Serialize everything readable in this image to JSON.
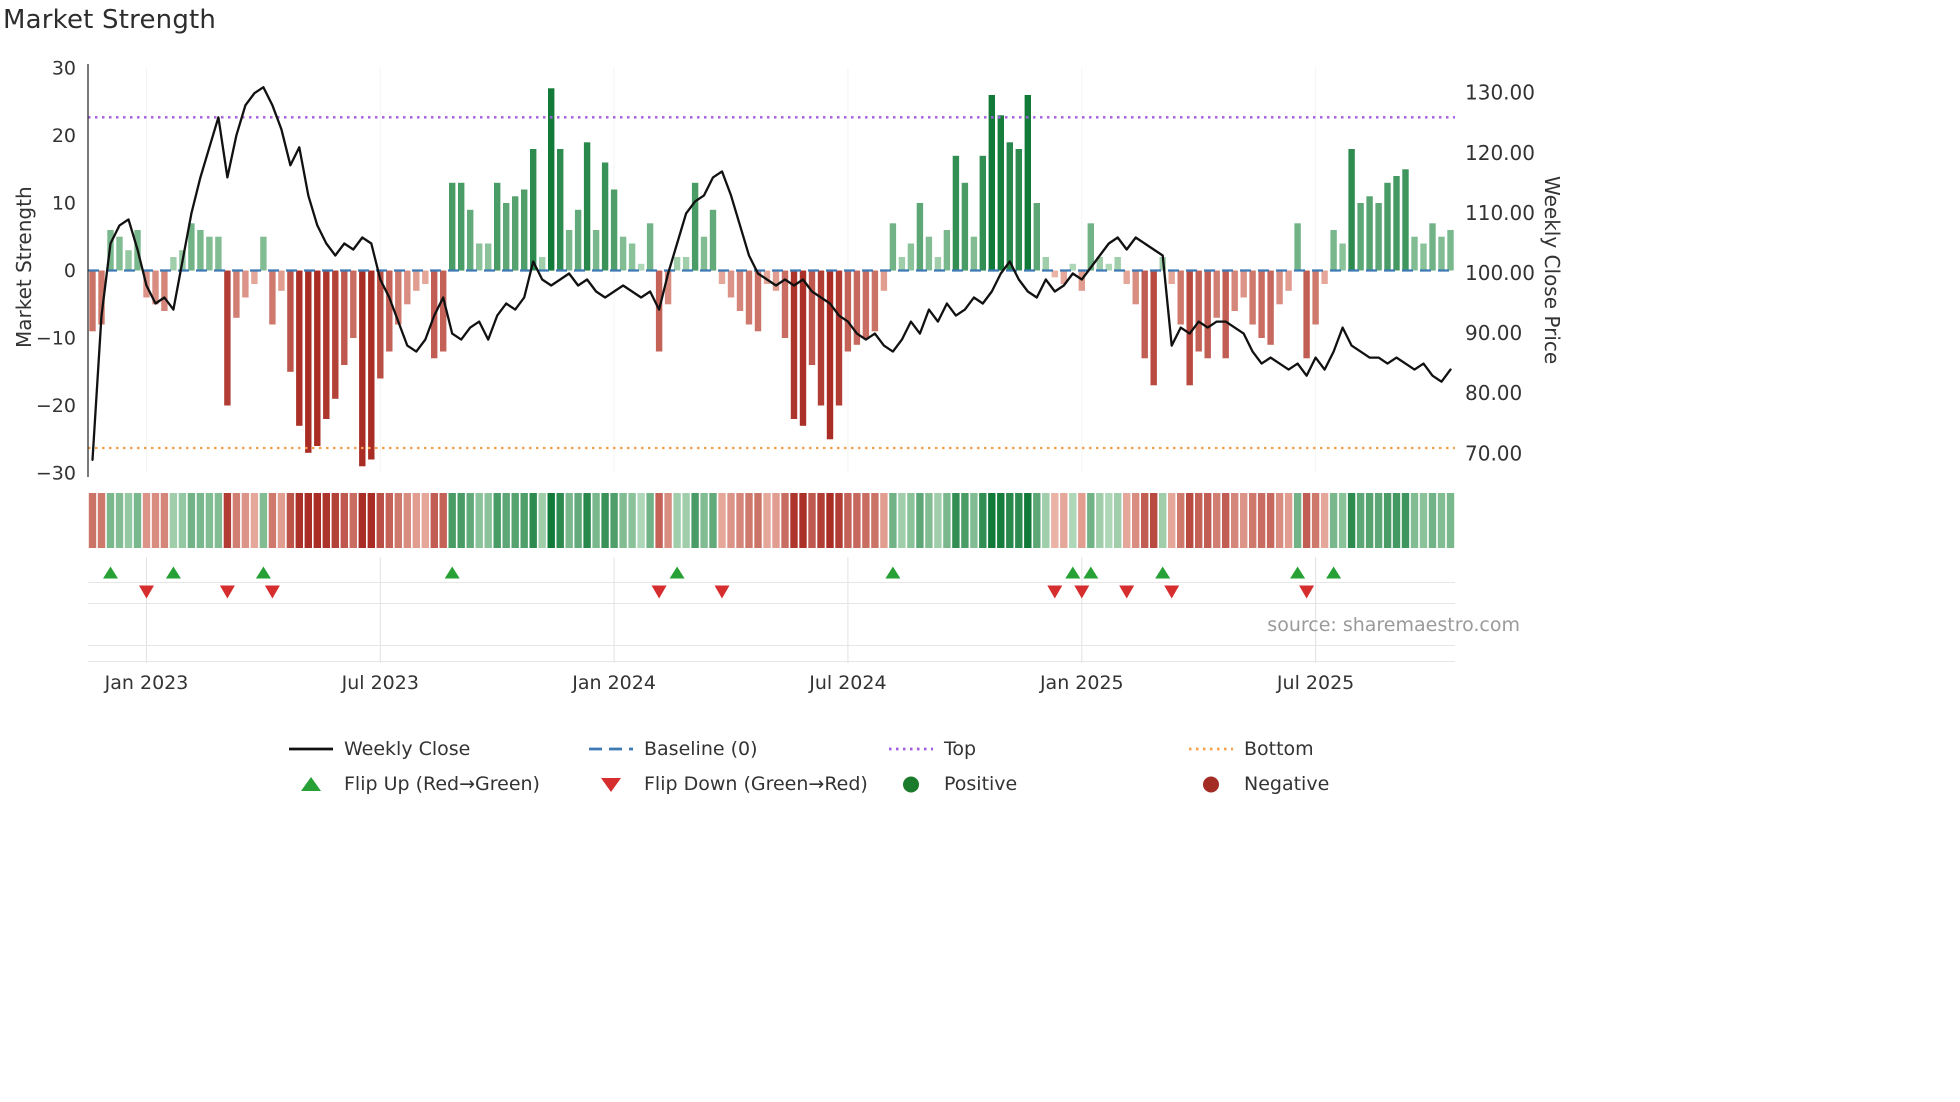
{
  "header": {
    "title": "Market Strength"
  },
  "source_text": "source: sharemaestro.com",
  "colors": {
    "weekly_close": "#111111",
    "baseline": "#3d7ab5",
    "top": "#a45de0",
    "bottom": "#f5a14d",
    "flip_up": "#27a035",
    "flip_down": "#d62e2e",
    "positive": "#1b7b2c",
    "negative": "#a32c25",
    "bar_green_dark": "#117a38",
    "bar_green_light": "#c9e7cd",
    "bar_red_dark": "#a92d24",
    "bar_red_light": "#f7cabc"
  },
  "legend": {
    "items": [
      {
        "label": "Weekly Close",
        "swatch": "line",
        "color_key": "weekly_close"
      },
      {
        "label": "Baseline (0)",
        "swatch": "dash",
        "color_key": "baseline"
      },
      {
        "label": "Top",
        "swatch": "dot",
        "color_key": "top"
      },
      {
        "label": "Bottom",
        "swatch": "dot",
        "color_key": "bottom"
      },
      {
        "label": "Flip Up (Red→Green)",
        "swatch": "tri_up",
        "color_key": "flip_up"
      },
      {
        "label": "Flip Down (Green→Red)",
        "swatch": "tri_down",
        "color_key": "flip_down"
      },
      {
        "label": "Positive",
        "swatch": "circle",
        "color_key": "positive"
      },
      {
        "label": "Negative",
        "swatch": "circle",
        "color_key": "negative"
      }
    ]
  },
  "chart_data": {
    "type": "bar+line",
    "title": "Market Strength",
    "ylabel_left": "Market Strength",
    "ylabel_right": "Weekly Close Price",
    "ylim_left": [
      -30,
      30
    ],
    "ylim_right": [
      66.8,
      134.2
    ],
    "grid": "light vertical gridlines at x ticks",
    "legend_position": "bottom",
    "yticks_left": [
      {
        "value": 30,
        "label": "30"
      },
      {
        "value": 20,
        "label": "20"
      },
      {
        "value": 10,
        "label": "10"
      },
      {
        "value": 0,
        "label": "0"
      },
      {
        "value": -10,
        "label": "−10"
      },
      {
        "value": -20,
        "label": "−20"
      },
      {
        "value": -30,
        "label": "−30"
      }
    ],
    "yticks_right": [
      {
        "value": 130,
        "label": "130.00"
      },
      {
        "value": 120,
        "label": "120.00"
      },
      {
        "value": 110,
        "label": "110.00"
      },
      {
        "value": 100,
        "label": "100.00"
      },
      {
        "value": 90,
        "label": "90.00"
      },
      {
        "value": 80,
        "label": "80.00"
      },
      {
        "value": 70,
        "label": "70.00"
      }
    ],
    "xticks": [
      {
        "week": 6,
        "label": "Jan 2023"
      },
      {
        "week": 32,
        "label": "Jul 2023"
      },
      {
        "week": 58,
        "label": "Jan 2024"
      },
      {
        "week": 84,
        "label": "Jul 2024"
      },
      {
        "week": 110,
        "label": "Jan 2025"
      },
      {
        "week": 136,
        "label": "Jul 2025"
      }
    ],
    "baseline": 0,
    "top_level": 22.7,
    "bottom_level": -26.3,
    "heatmap_strip": true,
    "bar_series": {
      "name": "Market Strength",
      "values": [
        -9,
        -8,
        6,
        5,
        3,
        6,
        -4,
        -5,
        -6,
        2,
        3,
        7,
        6,
        5,
        5,
        -20,
        -7,
        -4,
        -2,
        5,
        -8,
        -3,
        -15,
        -23,
        -27,
        -26,
        -22,
        -19,
        -14,
        -10,
        -29,
        -28,
        -16,
        -12,
        -8,
        -5,
        -3,
        -2,
        -13,
        -12,
        13,
        13,
        9,
        4,
        4,
        13,
        10,
        11,
        12,
        18,
        2,
        27,
        18,
        6,
        9,
        19,
        6,
        16,
        12,
        5,
        4,
        1,
        7,
        -12,
        -5,
        2,
        2,
        13,
        5,
        9,
        -2,
        -4,
        -6,
        -8,
        -9,
        -2,
        -3,
        -10,
        -22,
        -23,
        -14,
        -20,
        -25,
        -20,
        -12,
        -11,
        -10,
        -9,
        -3,
        7,
        2,
        4,
        10,
        5,
        2,
        6,
        17,
        13,
        5,
        17,
        26,
        23,
        19,
        18,
        26,
        10,
        2,
        -1,
        -2,
        1,
        -3,
        7,
        2,
        1,
        2,
        -2,
        -5,
        -13,
        -17,
        2,
        -2,
        -8,
        -17,
        -12,
        -13,
        -7,
        -13,
        -6,
        -4,
        -8,
        -10,
        -11,
        -5,
        -3,
        7,
        -13,
        -8,
        -2,
        6,
        4,
        18,
        10,
        11,
        10,
        13,
        14,
        15,
        5,
        4,
        7,
        5,
        6
      ]
    },
    "line_series": {
      "name": "Weekly Close",
      "values": [
        69,
        93,
        105,
        108,
        109,
        104,
        98,
        95,
        96,
        94,
        102,
        110,
        116,
        121,
        126,
        116,
        123,
        128,
        130,
        131,
        128,
        124,
        118,
        121,
        113,
        108,
        105,
        103,
        105,
        104,
        106,
        105,
        99,
        96,
        92,
        88,
        87,
        89,
        93,
        96,
        90,
        89,
        91,
        92,
        89,
        93,
        95,
        94,
        96,
        102,
        99,
        98,
        99,
        100,
        98,
        99,
        97,
        96,
        97,
        98,
        97,
        96,
        97,
        94,
        100,
        105,
        110,
        112,
        113,
        116,
        117,
        113,
        108,
        103,
        100,
        99,
        98,
        99,
        98,
        99,
        97,
        96,
        95,
        93,
        92,
        90,
        89,
        90,
        88,
        87,
        89,
        92,
        90,
        94,
        92,
        95,
        93,
        94,
        96,
        95,
        97,
        100,
        102,
        99,
        97,
        96,
        99,
        97,
        98,
        100,
        99,
        101,
        103,
        105,
        106,
        104,
        106,
        105,
        104,
        103,
        88,
        91,
        90,
        92,
        91,
        92,
        92,
        91,
        90,
        87,
        85,
        86,
        85,
        84,
        85,
        83,
        86,
        84,
        87,
        91,
        88,
        87,
        86,
        86,
        85,
        86,
        85,
        84,
        85,
        83,
        82,
        84
      ]
    },
    "flip_up_weeks": [
      2,
      9,
      19,
      40,
      65,
      89,
      109,
      111,
      119,
      134,
      138
    ],
    "flip_down_weeks": [
      6,
      15,
      20,
      63,
      70,
      107,
      110,
      115,
      120,
      135
    ]
  }
}
